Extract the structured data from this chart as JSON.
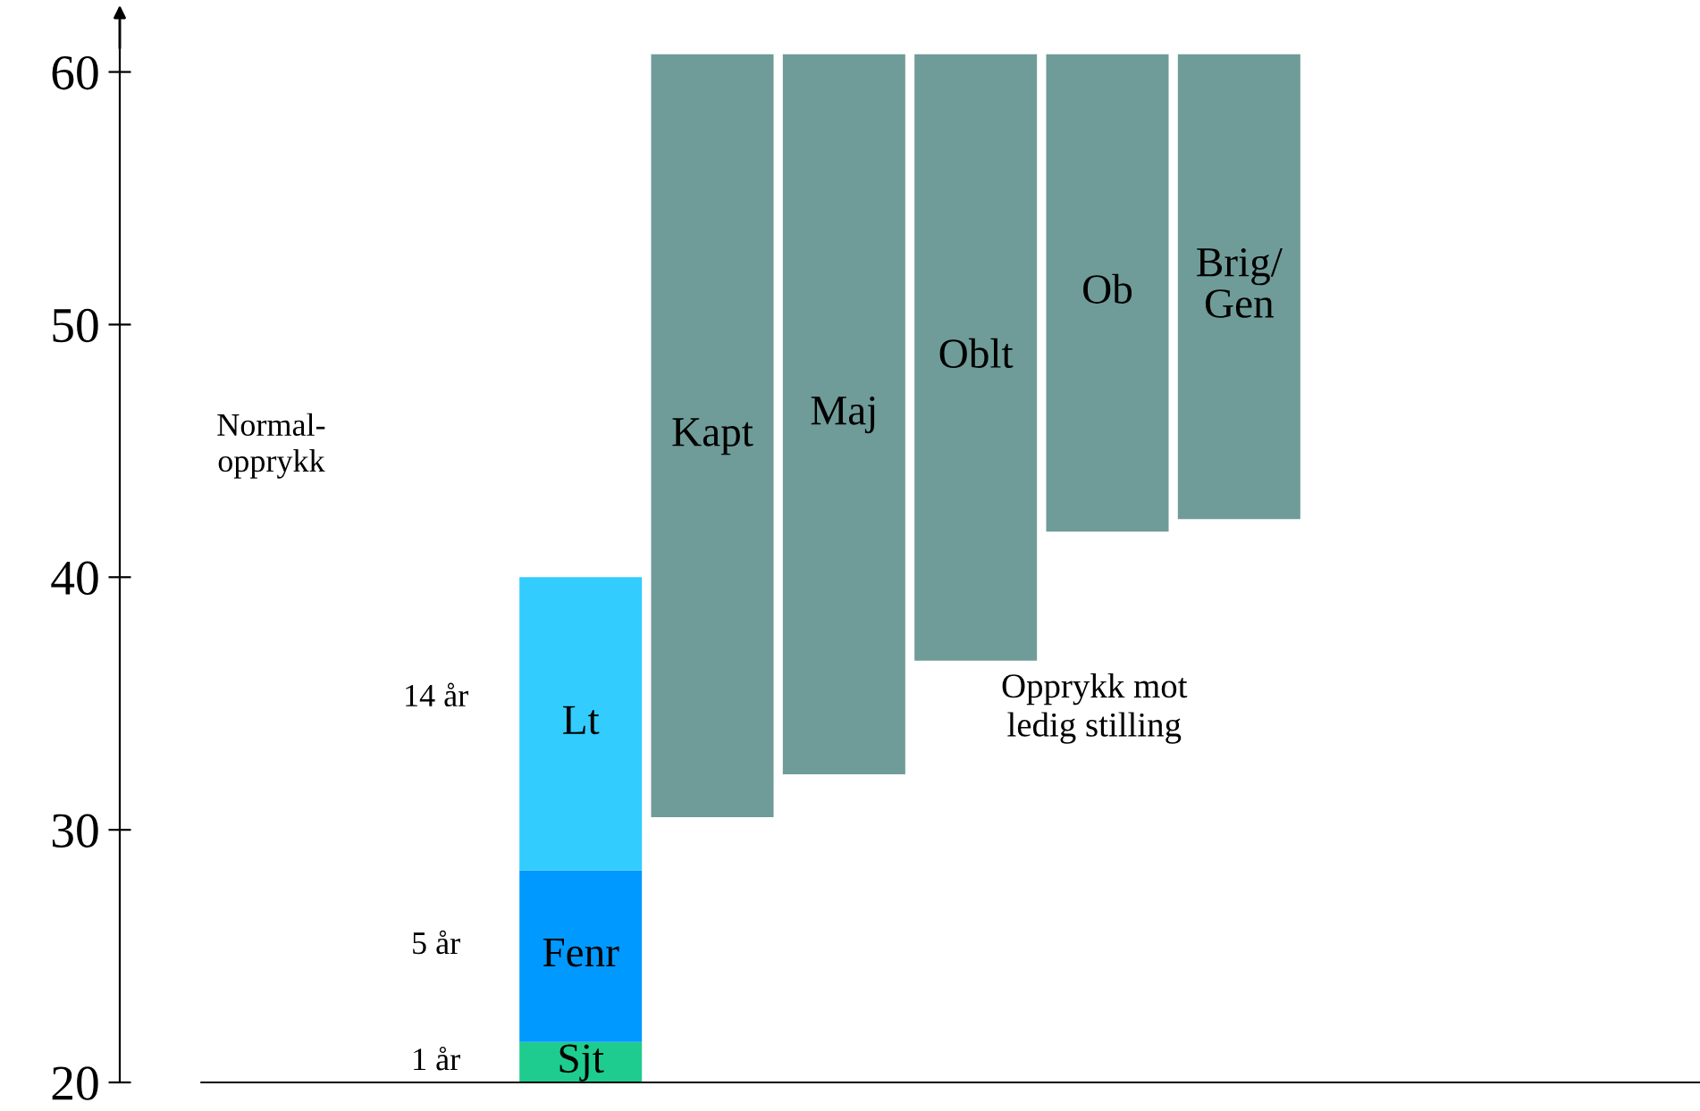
{
  "chart_data": {
    "type": "bar",
    "categories": [
      null,
      null,
      null,
      null,
      null,
      null,
      null,
      null,
      null,
      null,
      null,
      null
    ],
    "series": [
      {
        "colors": [
          null,
          null,
          null,
          "#1fcc8f",
          "#6f9c98",
          "#6f9c98",
          "#6f9c98",
          "#6f9c98",
          "#6f9c98",
          null,
          null,
          null
        ],
        "base": [
          null,
          null,
          null,
          20,
          30.5,
          32.2,
          36.7,
          41.8,
          42.3,
          null,
          null,
          null
        ],
        "values": [
          null,
          null,
          null,
          1.6,
          30.2,
          28.5,
          24,
          18.9,
          18.4,
          null,
          null,
          null
        ],
        "value_labels": [
          null,
          null,
          null,
          "Sjt",
          "Kapt",
          "Maj",
          "Oblt",
          "Ob",
          "Brig/\nGen",
          null,
          null,
          null
        ]
      },
      {
        "color": "#0099ff",
        "base": [
          null,
          null,
          null,
          21.6,
          null,
          null,
          null,
          null,
          null,
          null,
          null,
          null
        ],
        "values": [
          null,
          null,
          null,
          6.8,
          null,
          null,
          null,
          null,
          null,
          null,
          null,
          null
        ],
        "value_labels": [
          null,
          null,
          null,
          "Fenr",
          null,
          null,
          null,
          null,
          null,
          null,
          null,
          null
        ]
      },
      {
        "color": "#33ccff",
        "base": [
          null,
          null,
          null,
          28.4,
          null,
          null,
          null,
          null,
          null,
          null,
          null,
          null
        ],
        "values": [
          null,
          null,
          null,
          11.6,
          null,
          null,
          null,
          null,
          null,
          null,
          null,
          null
        ],
        "value_labels": [
          null,
          null,
          null,
          "Lt",
          null,
          null,
          null,
          null,
          null,
          null,
          null,
          null
        ]
      }
    ],
    "ylim": [
      20,
      62
    ],
    "yticks": [
      20,
      30,
      40,
      50,
      60
    ],
    "grid": false,
    "legend": false,
    "tick_labels": "y",
    "annotations": [
      "Normal-\nopprykk",
      "14 år",
      "5 år",
      "1 år",
      "Opprykk mot\nledig stilling"
    ]
  }
}
